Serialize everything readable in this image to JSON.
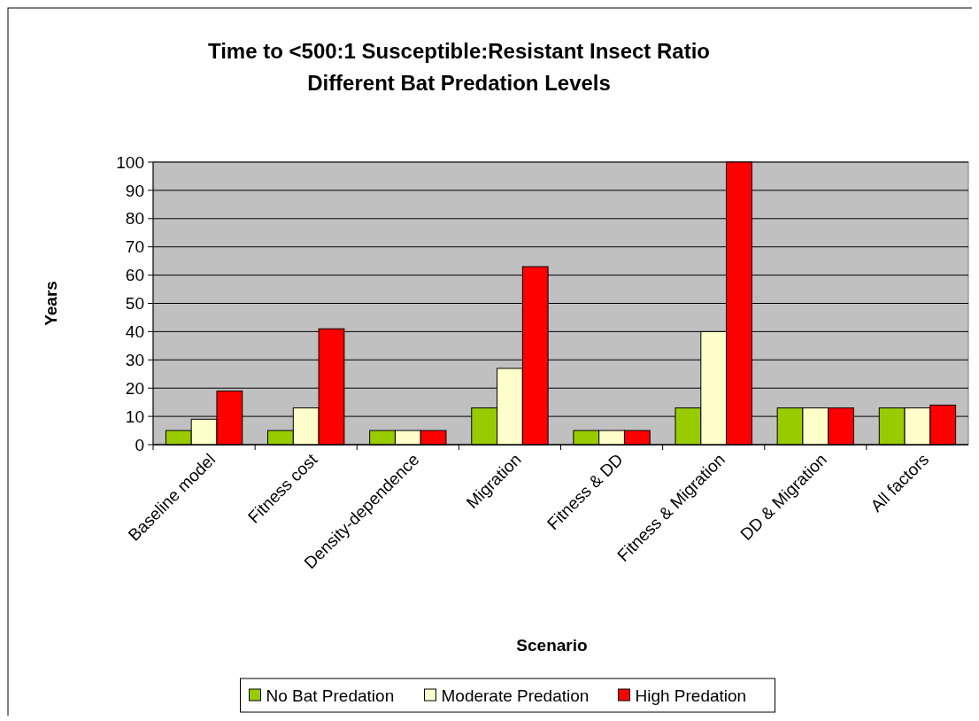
{
  "chart_data": {
    "type": "bar",
    "title": "Time to <500:1 Susceptible:Resistant Insect Ratio\nDifferent Bat Predation Levels",
    "xlabel": "Scenario",
    "ylabel": "Years",
    "categories": [
      "Baseline model",
      "Fitness cost",
      "Density-dependence",
      "Migration",
      "Fitness & DD",
      "Fitness & Migration",
      "DD & Migration",
      "All factors"
    ],
    "series": [
      {
        "name": "No Bat Predation",
        "color": "#99cc00",
        "values": [
          5,
          5,
          5,
          13,
          5,
          13,
          13,
          13
        ]
      },
      {
        "name": "Moderate Predation",
        "color": "#ffffcc",
        "values": [
          9,
          13,
          5,
          27,
          5,
          40,
          13,
          13
        ]
      },
      {
        "name": "High Predation",
        "color": "#ff0000",
        "values": [
          19,
          41,
          5,
          63,
          5,
          100,
          13,
          14
        ]
      }
    ],
    "ylim": [
      0,
      100
    ],
    "yticks": [
      0,
      10,
      20,
      30,
      40,
      50,
      60,
      70,
      80,
      90,
      100
    ],
    "grid": "y",
    "legend": "bottom"
  }
}
